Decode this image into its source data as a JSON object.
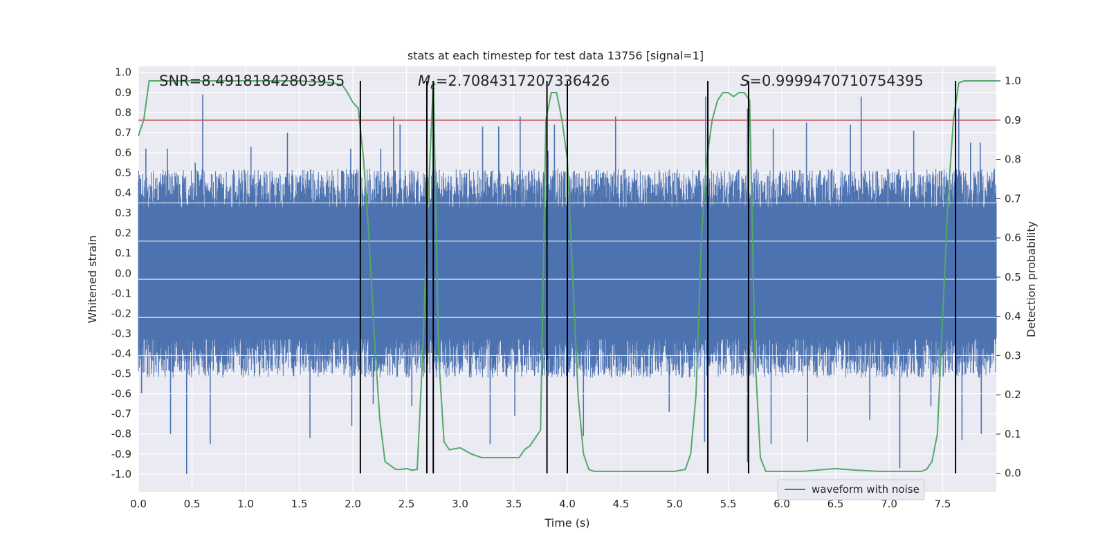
{
  "chart_data": {
    "type": "line",
    "title": "stats at each timestep for test data 13756 [signal=1]",
    "xlabel": "Time (s)",
    "ylabel": "Whitened strain",
    "y2label": "Detection probability",
    "xlim": [
      0.0,
      8.0
    ],
    "ylim": [
      -1.09,
      1.03
    ],
    "y2lim": [
      -0.048,
      1.037
    ],
    "grid": true,
    "xticks": [
      "0.0",
      "0.5",
      "1.0",
      "1.5",
      "2.0",
      "2.5",
      "3.0",
      "3.5",
      "4.0",
      "4.5",
      "5.0",
      "5.5",
      "6.0",
      "6.5",
      "7.0",
      "7.5"
    ],
    "yticks": [
      "1.0",
      "0.9",
      "0.8",
      "0.7",
      "0.6",
      "0.5",
      "0.4",
      "0.3",
      "0.2",
      "0.1",
      "0.0",
      "-0.1",
      "-0.2",
      "-0.3",
      "-0.4",
      "-0.5",
      "-0.6",
      "-0.7",
      "-0.8",
      "-0.9",
      "-1.0"
    ],
    "y2ticks": [
      "1.0",
      "0.9",
      "0.8",
      "0.7",
      "0.6",
      "0.5",
      "0.4",
      "0.3",
      "0.2",
      "0.1",
      "0.0"
    ],
    "annotations": {
      "snr": "SNR=8.49181842803955",
      "mc_symbol": "M",
      "mc_sub": "c",
      "mc_value": "=2.7084317207336426",
      "s_symbol": "S",
      "s_value": "=0.9999470710754395"
    },
    "legend": {
      "entries": [
        "waveform with noise"
      ],
      "placement": "lower-right"
    },
    "threshold_line": {
      "value": 0.9,
      "axis": "right",
      "color": "#c44e52"
    },
    "vertical_lines": [
      2.07,
      2.69,
      2.75,
      3.81,
      4.0,
      5.31,
      5.69,
      7.62
    ],
    "series": [
      {
        "name": "waveform with noise",
        "axis": "left",
        "color": "#4c72b0",
        "envelope_note": "noise band approx +/-0.45 with spikes",
        "spikes_high": [
          [
            0.07,
            0.62
          ],
          [
            0.27,
            0.62
          ],
          [
            0.53,
            0.55
          ],
          [
            0.6,
            0.89
          ],
          [
            1.05,
            0.63
          ],
          [
            1.39,
            0.7
          ],
          [
            1.98,
            0.62
          ],
          [
            2.26,
            0.62
          ],
          [
            2.38,
            0.78
          ],
          [
            2.44,
            0.74
          ],
          [
            2.75,
            0.85
          ],
          [
            3.21,
            0.73
          ],
          [
            3.36,
            0.73
          ],
          [
            3.56,
            0.78
          ],
          [
            3.82,
            0.61
          ],
          [
            3.88,
            0.74
          ],
          [
            4.45,
            0.78
          ],
          [
            5.29,
            0.88
          ],
          [
            5.68,
            0.82
          ],
          [
            5.92,
            0.72
          ],
          [
            6.23,
            0.75
          ],
          [
            6.64,
            0.74
          ],
          [
            6.74,
            0.88
          ],
          [
            7.23,
            0.71
          ],
          [
            7.65,
            0.82
          ],
          [
            7.76,
            0.65
          ],
          [
            7.85,
            0.65
          ]
        ],
        "spikes_low": [
          [
            0.03,
            -0.6
          ],
          [
            0.3,
            -0.8
          ],
          [
            0.45,
            -1.0
          ],
          [
            0.67,
            -0.85
          ],
          [
            1.6,
            -0.82
          ],
          [
            1.99,
            -0.76
          ],
          [
            2.07,
            -0.45
          ],
          [
            2.19,
            -0.65
          ],
          [
            2.55,
            -0.66
          ],
          [
            3.28,
            -0.85
          ],
          [
            3.51,
            -0.71
          ],
          [
            4.15,
            -0.81
          ],
          [
            4.95,
            -0.69
          ],
          [
            5.28,
            -0.84
          ],
          [
            5.68,
            -0.94
          ],
          [
            5.9,
            -0.85
          ],
          [
            6.24,
            -0.84
          ],
          [
            6.82,
            -0.73
          ],
          [
            7.1,
            -0.97
          ],
          [
            7.39,
            -0.66
          ],
          [
            7.68,
            -0.83
          ],
          [
            7.86,
            -0.8
          ]
        ]
      },
      {
        "name": "",
        "axis": "right",
        "color": "#55a868",
        "x": [
          0.0,
          0.05,
          0.1,
          0.3,
          0.6,
          0.9,
          1.2,
          1.5,
          1.8,
          1.9,
          1.95,
          2.0,
          2.05,
          2.1,
          2.15,
          2.2,
          2.25,
          2.3,
          2.35,
          2.4,
          2.45,
          2.5,
          2.55,
          2.6,
          2.65,
          2.7,
          2.75,
          2.8,
          2.85,
          2.9,
          3.0,
          3.1,
          3.2,
          3.3,
          3.4,
          3.5,
          3.55,
          3.6,
          3.65,
          3.7,
          3.75,
          3.8,
          3.85,
          3.9,
          3.95,
          4.0,
          4.05,
          4.1,
          4.15,
          4.2,
          4.25,
          4.3,
          4.4,
          4.6,
          4.8,
          5.0,
          5.1,
          5.15,
          5.2,
          5.25,
          5.3,
          5.35,
          5.4,
          5.45,
          5.5,
          5.55,
          5.6,
          5.65,
          5.7,
          5.75,
          5.8,
          5.85,
          5.9,
          6.0,
          6.2,
          6.4,
          6.5,
          6.7,
          6.9,
          7.1,
          7.2,
          7.3,
          7.35,
          7.4,
          7.45,
          7.5,
          7.55,
          7.6,
          7.65,
          7.7,
          7.75,
          7.8,
          7.9,
          7.95,
          8.0
        ],
        "y": [
          0.86,
          0.9,
          1.0,
          1.0,
          1.0,
          1.0,
          1.0,
          1.0,
          0.995,
          0.99,
          0.97,
          0.945,
          0.93,
          0.8,
          0.6,
          0.35,
          0.14,
          0.03,
          0.02,
          0.01,
          0.01,
          0.012,
          0.008,
          0.01,
          0.3,
          0.68,
          1.0,
          0.3,
          0.08,
          0.06,
          0.065,
          0.05,
          0.04,
          0.04,
          0.04,
          0.04,
          0.04,
          0.06,
          0.07,
          0.09,
          0.11,
          0.9,
          0.97,
          0.97,
          0.9,
          0.8,
          0.5,
          0.2,
          0.05,
          0.01,
          0.005,
          0.005,
          0.005,
          0.005,
          0.005,
          0.005,
          0.01,
          0.05,
          0.2,
          0.6,
          0.8,
          0.9,
          0.95,
          0.97,
          0.97,
          0.96,
          0.97,
          0.97,
          0.95,
          0.3,
          0.04,
          0.005,
          0.005,
          0.005,
          0.005,
          0.01,
          0.012,
          0.008,
          0.005,
          0.005,
          0.005,
          0.005,
          0.01,
          0.03,
          0.1,
          0.4,
          0.7,
          0.9,
          0.995,
          1.0,
          1.0,
          1.0,
          1.0,
          1.0,
          1.0
        ]
      }
    ]
  }
}
